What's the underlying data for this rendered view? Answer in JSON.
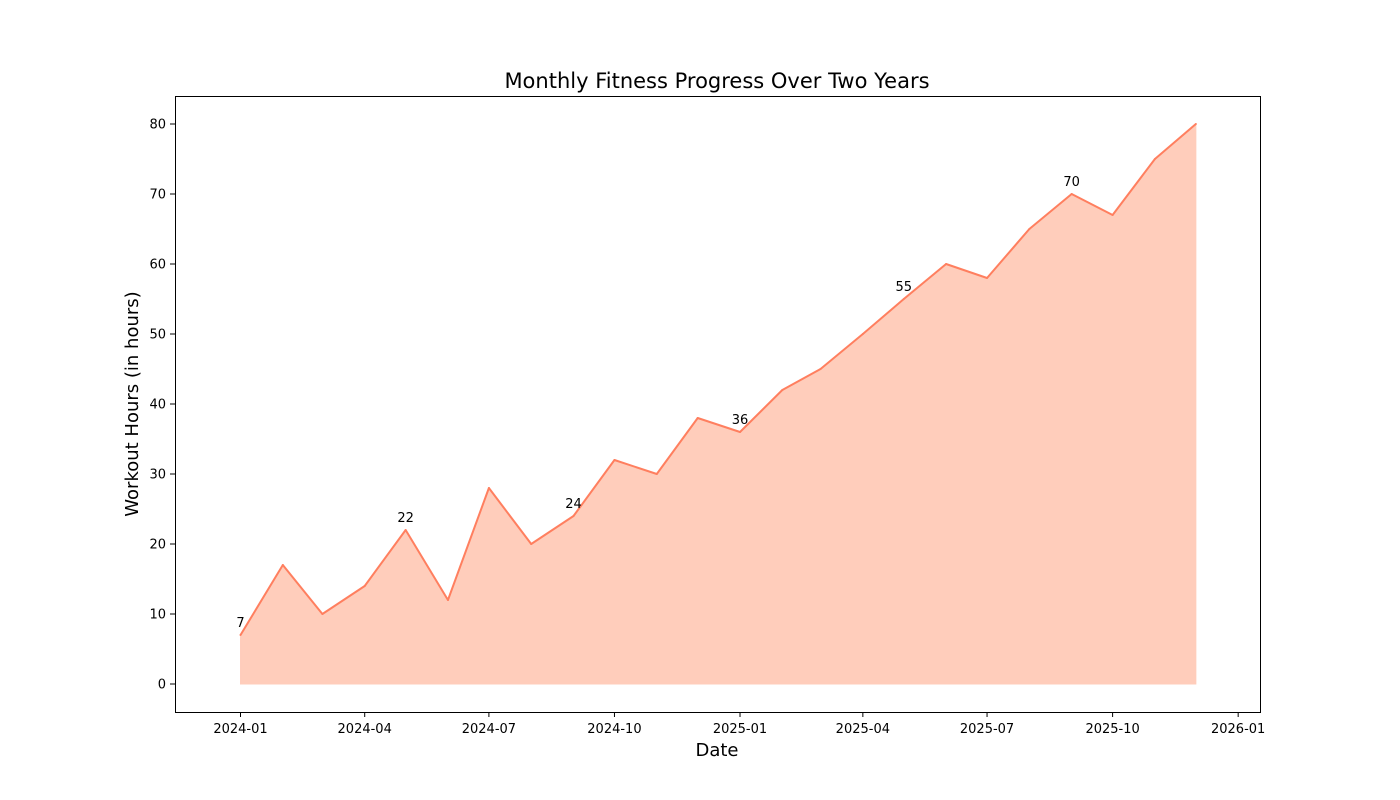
{
  "chart_data": {
    "type": "area",
    "title": "Monthly Fitness Progress Over Two Years",
    "xlabel": "Date",
    "ylabel": "Workout Hours (in hours)",
    "x": [
      "2024-01",
      "2024-02",
      "2024-03",
      "2024-04",
      "2024-05",
      "2024-06",
      "2024-07",
      "2024-08",
      "2024-09",
      "2024-10",
      "2024-11",
      "2024-12",
      "2025-01",
      "2025-02",
      "2025-03",
      "2025-04",
      "2025-05",
      "2025-06",
      "2025-07",
      "2025-08",
      "2025-09",
      "2025-10",
      "2025-11",
      "2025-12"
    ],
    "values": [
      7,
      17,
      10,
      14,
      22,
      12,
      28,
      20,
      24,
      32,
      30,
      38,
      36,
      42,
      45,
      50,
      55,
      60,
      58,
      65,
      70,
      67,
      75,
      80
    ],
    "annotations": [
      {
        "x": "2024-01",
        "value": 7,
        "label": "7"
      },
      {
        "x": "2024-05",
        "value": 22,
        "label": "22"
      },
      {
        "x": "2024-09",
        "value": 24,
        "label": "24"
      },
      {
        "x": "2025-01",
        "value": 36,
        "label": "36"
      },
      {
        "x": "2025-05",
        "value": 55,
        "label": "55"
      },
      {
        "x": "2025-09",
        "value": 70,
        "label": "70"
      }
    ],
    "ylim": [
      -4,
      84
    ],
    "xlim": [
      "2023-11-14",
      "2026-01-17"
    ],
    "x_ticks": [
      "2024-01",
      "2024-04",
      "2024-07",
      "2024-10",
      "2025-01",
      "2025-04",
      "2025-07",
      "2025-10",
      "2026-01"
    ],
    "y_ticks": [
      0,
      10,
      20,
      30,
      40,
      50,
      60,
      70,
      80
    ],
    "grid": false,
    "colors": {
      "line": "#ff7f5f",
      "fill": "#ffcdbb"
    }
  }
}
